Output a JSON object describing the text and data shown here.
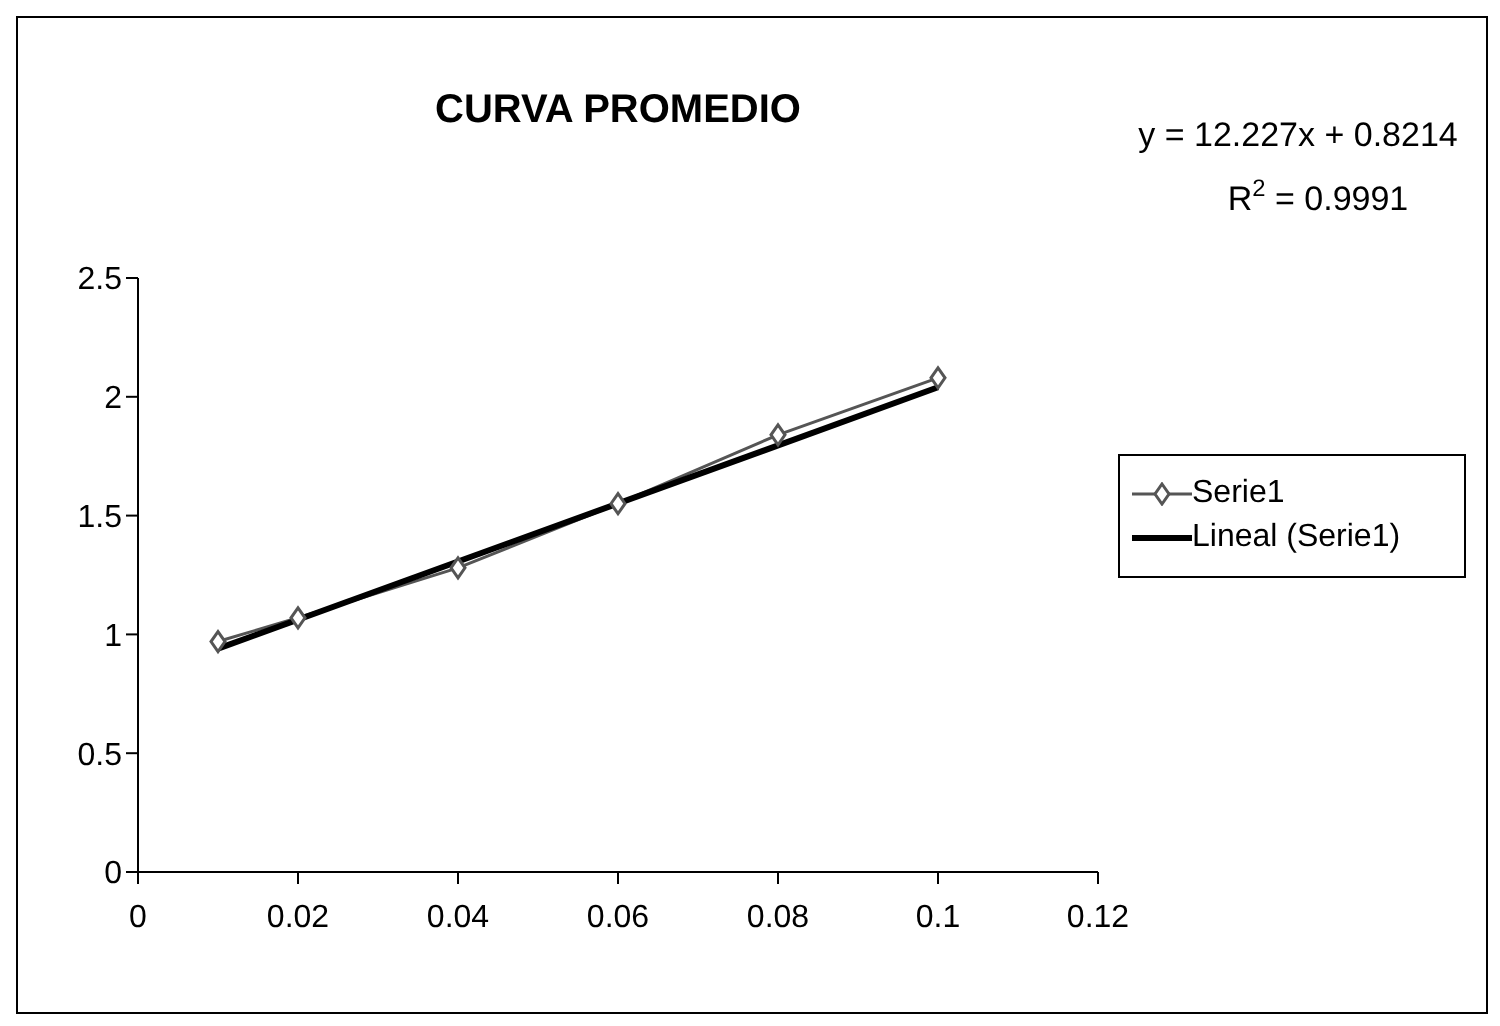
{
  "chart_data": {
    "type": "line",
    "title": "CURVA PROMEDIO",
    "annotations": [
      "y = 12.227x + 0.8214",
      "R$^{2}$ = 0.9991"
    ],
    "x": [
      0.01,
      0.02,
      0.04,
      0.06,
      0.08,
      0.1
    ],
    "series": [
      {
        "name": "Serie1",
        "color": "#555555",
        "marker": "diamond",
        "values": [
          0.97,
          1.07,
          1.28,
          1.55,
          1.84,
          2.08
        ]
      },
      {
        "name": "Lineal (Serie1)",
        "color": "#000000",
        "marker": "none",
        "x": [
          0.01,
          0.1
        ],
        "values": [
          0.94,
          2.04
        ]
      }
    ],
    "xlim": [
      0,
      0.12
    ],
    "xticks": [
      0,
      0.02,
      0.04,
      0.06,
      0.08,
      0.1,
      0.12
    ],
    "ylim": [
      0,
      2.5
    ],
    "yticks": [
      0,
      0.5,
      1,
      1.5,
      2,
      2.5
    ],
    "grid": false,
    "legend": "right"
  }
}
